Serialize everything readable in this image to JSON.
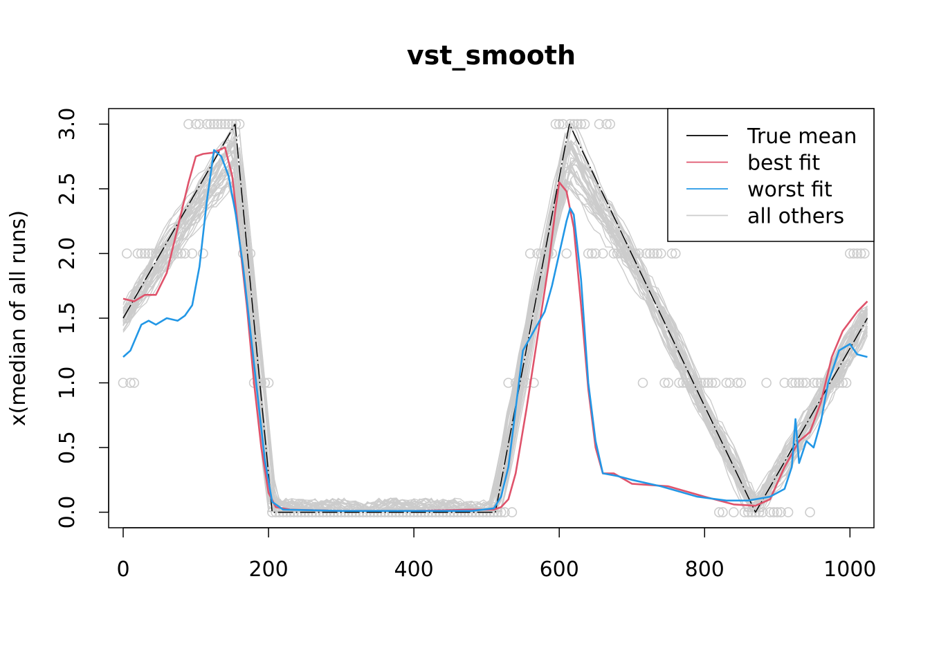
{
  "chart_data": {
    "type": "line",
    "title": "vst_smooth",
    "xlabel": "",
    "ylabel": "x(median of all runs)",
    "xlim": [
      -20,
      1033
    ],
    "ylim": [
      -0.12,
      3.12
    ],
    "xticks": [
      0,
      200,
      400,
      600,
      800,
      1000
    ],
    "yticks": [
      0.0,
      0.5,
      1.0,
      1.5,
      2.0,
      2.5,
      3.0
    ],
    "xtick_labels": [
      "0",
      "200",
      "400",
      "600",
      "800",
      "1000"
    ],
    "ytick_labels": [
      "0.0",
      "0.5",
      "1.0",
      "1.5",
      "2.0",
      "2.5",
      "3.0"
    ],
    "legend_position": "top-right",
    "colors": {
      "true_mean": "#000000",
      "best_fit": "#DF536B",
      "worst_fit": "#2297E6",
      "all_others": "#CCCCCC",
      "points": "#CCCCCC"
    },
    "series": [
      {
        "name": "True mean",
        "color_key": "true_mean",
        "x": [
          0,
          154,
          205,
          512,
          614,
          870,
          1024
        ],
        "y": [
          1.5,
          3.0,
          0.0,
          0.0,
          3.0,
          0.0,
          1.5
        ]
      },
      {
        "name": "best fit",
        "color_key": "best_fit",
        "x": [
          0,
          15,
          30,
          45,
          60,
          75,
          90,
          100,
          110,
          125,
          140,
          150,
          160,
          170,
          180,
          190,
          200,
          210,
          230,
          300,
          400,
          480,
          510,
          520,
          530,
          540,
          555,
          570,
          585,
          595,
          600,
          610,
          620,
          630,
          640,
          650,
          660,
          675,
          700,
          750,
          800,
          840,
          870,
          890,
          910,
          930,
          945,
          960,
          975,
          990,
          1010,
          1024
        ],
        "y": [
          1.65,
          1.63,
          1.68,
          1.68,
          1.85,
          2.2,
          2.55,
          2.75,
          2.77,
          2.78,
          2.82,
          2.6,
          2.1,
          1.6,
          1.0,
          0.5,
          0.15,
          0.04,
          0.02,
          0.01,
          0.01,
          0.02,
          0.02,
          0.04,
          0.1,
          0.3,
          0.8,
          1.35,
          1.9,
          2.35,
          2.55,
          2.48,
          2.2,
          1.6,
          0.95,
          0.5,
          0.3,
          0.3,
          0.22,
          0.2,
          0.12,
          0.06,
          0.05,
          0.1,
          0.35,
          0.55,
          0.62,
          0.85,
          1.2,
          1.4,
          1.55,
          1.63
        ]
      },
      {
        "name": "worst fit",
        "color_key": "worst_fit",
        "x": [
          0,
          10,
          25,
          35,
          45,
          60,
          75,
          85,
          95,
          105,
          115,
          125,
          135,
          145,
          155,
          165,
          175,
          185,
          195,
          205,
          220,
          300,
          400,
          480,
          510,
          520,
          530,
          540,
          550,
          560,
          570,
          580,
          590,
          600,
          610,
          615,
          620,
          630,
          640,
          650,
          660,
          680,
          700,
          740,
          790,
          830,
          860,
          890,
          910,
          920,
          925,
          930,
          940,
          950,
          960,
          970,
          985,
          1000,
          1010,
          1024
        ],
        "y": [
          1.2,
          1.25,
          1.45,
          1.48,
          1.45,
          1.5,
          1.48,
          1.52,
          1.6,
          1.9,
          2.4,
          2.8,
          2.75,
          2.6,
          2.3,
          1.9,
          1.4,
          0.9,
          0.4,
          0.08,
          0.02,
          0.01,
          0.01,
          0.01,
          0.03,
          0.12,
          0.35,
          0.8,
          1.25,
          1.35,
          1.45,
          1.55,
          1.75,
          2.0,
          2.25,
          2.35,
          2.3,
          1.8,
          1.0,
          0.55,
          0.3,
          0.28,
          0.25,
          0.2,
          0.12,
          0.09,
          0.09,
          0.12,
          0.18,
          0.35,
          0.72,
          0.38,
          0.55,
          0.5,
          0.7,
          1.0,
          1.25,
          1.3,
          1.22,
          1.2
        ]
      }
    ],
    "others_count": 40,
    "legend": [
      {
        "label": "True mean",
        "color_key": "true_mean"
      },
      {
        "label": "best fit",
        "color_key": "best_fit"
      },
      {
        "label": "worst fit",
        "color_key": "worst_fit"
      },
      {
        "label": "all others",
        "color_key": "all_others"
      }
    ]
  }
}
